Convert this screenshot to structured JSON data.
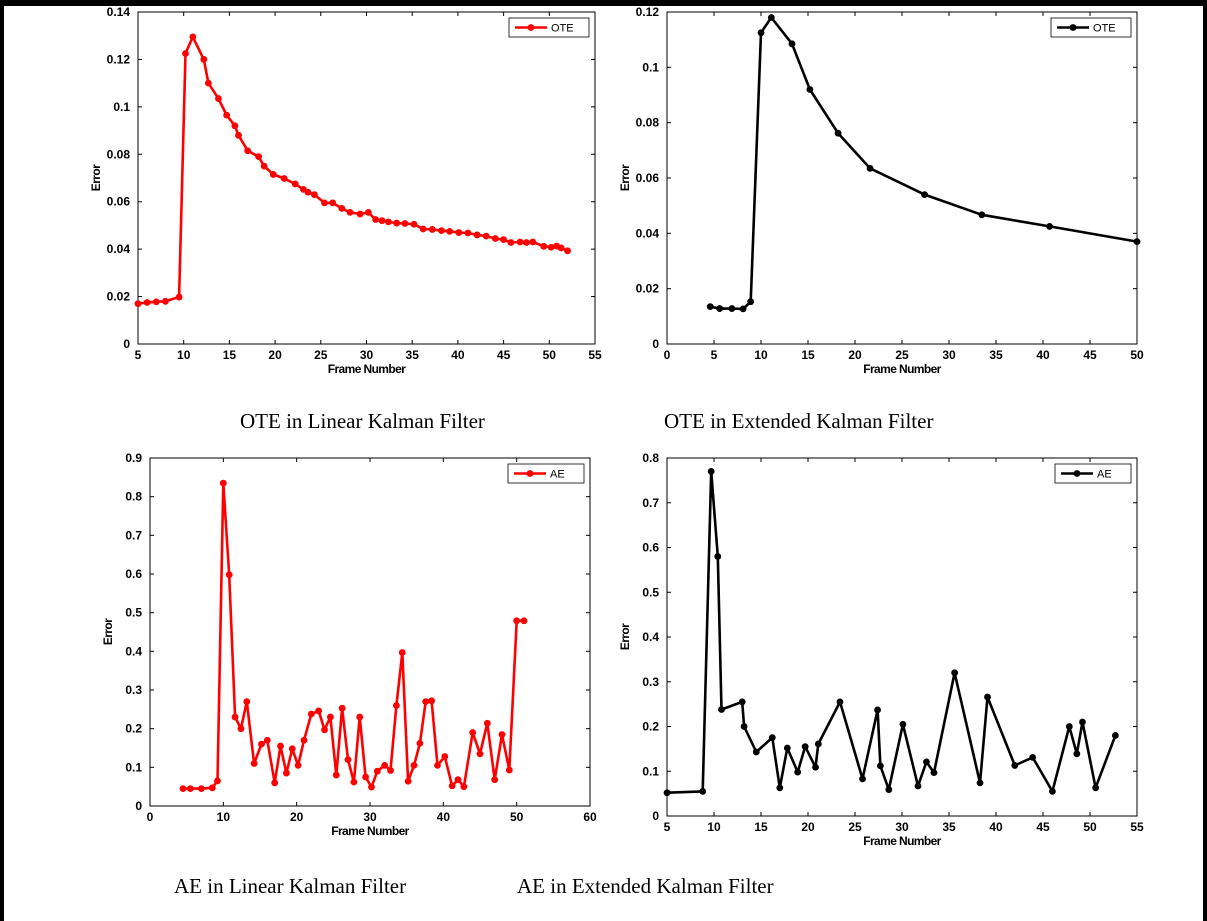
{
  "captions": {
    "tl": "OTE in Linear Kalman Filter",
    "tr": "OTE in Extended Kalman Filter",
    "bl": "AE in Linear Kalman Filter",
    "br": "AE in Extended Kalman Filter"
  },
  "chart_data": [
    {
      "type": "line",
      "xlabel": "Frame Number",
      "ylabel": "Error",
      "xlim": [
        5,
        55
      ],
      "ylim": [
        0,
        0.14
      ],
      "xticks": [
        5,
        10,
        15,
        20,
        25,
        30,
        35,
        40,
        45,
        50,
        55
      ],
      "yticks": [
        0,
        0.02,
        0.04,
        0.06,
        0.08,
        0.1,
        0.12,
        0.14
      ],
      "legend_position": "top-right",
      "color": "#ff0000",
      "series": [
        {
          "name": "OTE",
          "x": [
            5,
            6,
            7,
            8,
            9.5,
            10.2,
            11,
            12.2,
            12.7,
            13.8,
            14.7,
            15.6,
            16,
            17,
            18.2,
            18.8,
            19.8,
            21,
            22.2,
            23.1,
            23.6,
            24.3,
            25.4,
            26.3,
            27.3,
            28.2,
            29.3,
            30.2,
            31,
            31.7,
            32.4,
            33.3,
            34.2,
            35.2,
            36.2,
            37.2,
            38.2,
            39.1,
            40.1,
            41.1,
            42.1,
            43.1,
            44.1,
            45,
            45.8,
            46.8,
            47.5,
            48.2,
            49.4,
            50.2,
            50.8,
            51.3,
            52
          ],
          "y": [
            0.017,
            0.0175,
            0.0178,
            0.018,
            0.0198,
            0.1225,
            0.1295,
            0.12,
            0.11,
            0.1035,
            0.0965,
            0.092,
            0.088,
            0.0815,
            0.079,
            0.075,
            0.0715,
            0.0698,
            0.0675,
            0.0652,
            0.064,
            0.063,
            0.0595,
            0.0595,
            0.0572,
            0.0555,
            0.0548,
            0.0555,
            0.0525,
            0.052,
            0.0515,
            0.051,
            0.0508,
            0.0505,
            0.0485,
            0.0483,
            0.0478,
            0.0475,
            0.047,
            0.0468,
            0.046,
            0.0455,
            0.0445,
            0.044,
            0.0428,
            0.043,
            0.0428,
            0.043,
            0.0412,
            0.0408,
            0.0413,
            0.0405,
            0.0393
          ]
        }
      ]
    },
    {
      "type": "line",
      "xlabel": "Frame Number",
      "ylabel": "Error",
      "xlim": [
        0,
        50
      ],
      "ylim": [
        0,
        0.12
      ],
      "xticks": [
        0,
        5,
        10,
        15,
        20,
        25,
        30,
        35,
        40,
        45,
        50
      ],
      "yticks": [
        0,
        0.02,
        0.04,
        0.06,
        0.08,
        0.1,
        0.12
      ],
      "legend_position": "top-right",
      "color": "#000000",
      "series": [
        {
          "name": "OTE",
          "x": [
            4.6,
            5.6,
            6.9,
            8.1,
            8.9,
            10,
            11.1,
            13.3,
            15.2,
            18.2,
            21.6,
            27.4,
            33.5,
            40.7,
            50
          ],
          "y": [
            0.0135,
            0.0128,
            0.0128,
            0.0127,
            0.0153,
            0.1125,
            0.118,
            0.1085,
            0.092,
            0.0762,
            0.0635,
            0.054,
            0.0467,
            0.0425,
            0.037
          ]
        }
      ]
    },
    {
      "type": "line",
      "xlabel": "Frame Number",
      "ylabel": "Error",
      "xlim": [
        0,
        60
      ],
      "ylim": [
        0,
        0.9
      ],
      "xticks": [
        0,
        10,
        20,
        30,
        40,
        50,
        60
      ],
      "yticks": [
        0,
        0.1,
        0.2,
        0.3,
        0.4,
        0.5,
        0.6,
        0.7,
        0.8,
        0.9
      ],
      "legend_position": "top-right",
      "color": "#ff0000",
      "series": [
        {
          "name": "AE",
          "x": [
            4.5,
            5.5,
            7,
            8.5,
            9.2,
            10,
            10.8,
            11.6,
            12.4,
            13.2,
            14.2,
            15.2,
            16,
            17,
            17.8,
            18.6,
            19.4,
            20.2,
            21,
            22,
            23,
            23.8,
            24.6,
            25.4,
            26.2,
            27,
            27.8,
            28.6,
            29.4,
            30.2,
            31,
            32,
            32.8,
            33.6,
            34.4,
            35.2,
            36,
            36.8,
            37.6,
            38.4,
            39.2,
            40.2,
            41.2,
            42,
            42.8,
            44,
            45,
            46,
            47,
            48,
            49,
            50,
            51
          ],
          "y": [
            0.045,
            0.045,
            0.045,
            0.047,
            0.065,
            0.835,
            0.598,
            0.23,
            0.2,
            0.27,
            0.11,
            0.16,
            0.17,
            0.06,
            0.155,
            0.085,
            0.148,
            0.105,
            0.17,
            0.238,
            0.246,
            0.197,
            0.23,
            0.08,
            0.253,
            0.12,
            0.062,
            0.23,
            0.075,
            0.049,
            0.09,
            0.105,
            0.092,
            0.26,
            0.397,
            0.064,
            0.105,
            0.162,
            0.27,
            0.272,
            0.105,
            0.128,
            0.052,
            0.068,
            0.05,
            0.19,
            0.135,
            0.214,
            0.068,
            0.185,
            0.093,
            0.479,
            0.479
          ]
        }
      ]
    },
    {
      "type": "line",
      "xlabel": "Frame Number",
      "ylabel": "Error",
      "xlim": [
        5,
        55
      ],
      "ylim": [
        0,
        0.8
      ],
      "xticks": [
        5,
        10,
        15,
        20,
        25,
        30,
        35,
        40,
        45,
        50,
        55
      ],
      "yticks": [
        0,
        0.1,
        0.2,
        0.3,
        0.4,
        0.5,
        0.6,
        0.7,
        0.8
      ],
      "legend_position": "top-right",
      "color": "#000000",
      "series": [
        {
          "name": "AE",
          "x": [
            5,
            8.8,
            9.7,
            10.4,
            10.8,
            13,
            13.2,
            14.5,
            16.2,
            17,
            17.8,
            18.9,
            19.7,
            20.8,
            21.1,
            23.4,
            25.8,
            27.4,
            27.7,
            28.6,
            30.1,
            31.7,
            32.6,
            33.4,
            35.6,
            38.3,
            39.1,
            42,
            43.9,
            46,
            47.8,
            48.6,
            49.2,
            50.6,
            52.7
          ],
          "y": [
            0.052,
            0.055,
            0.77,
            0.58,
            0.238,
            0.255,
            0.2,
            0.143,
            0.175,
            0.063,
            0.152,
            0.098,
            0.155,
            0.109,
            0.161,
            0.255,
            0.083,
            0.237,
            0.112,
            0.059,
            0.205,
            0.067,
            0.121,
            0.097,
            0.32,
            0.074,
            0.266,
            0.113,
            0.131,
            0.055,
            0.2,
            0.139,
            0.21,
            0.063,
            0.18
          ]
        }
      ]
    }
  ]
}
